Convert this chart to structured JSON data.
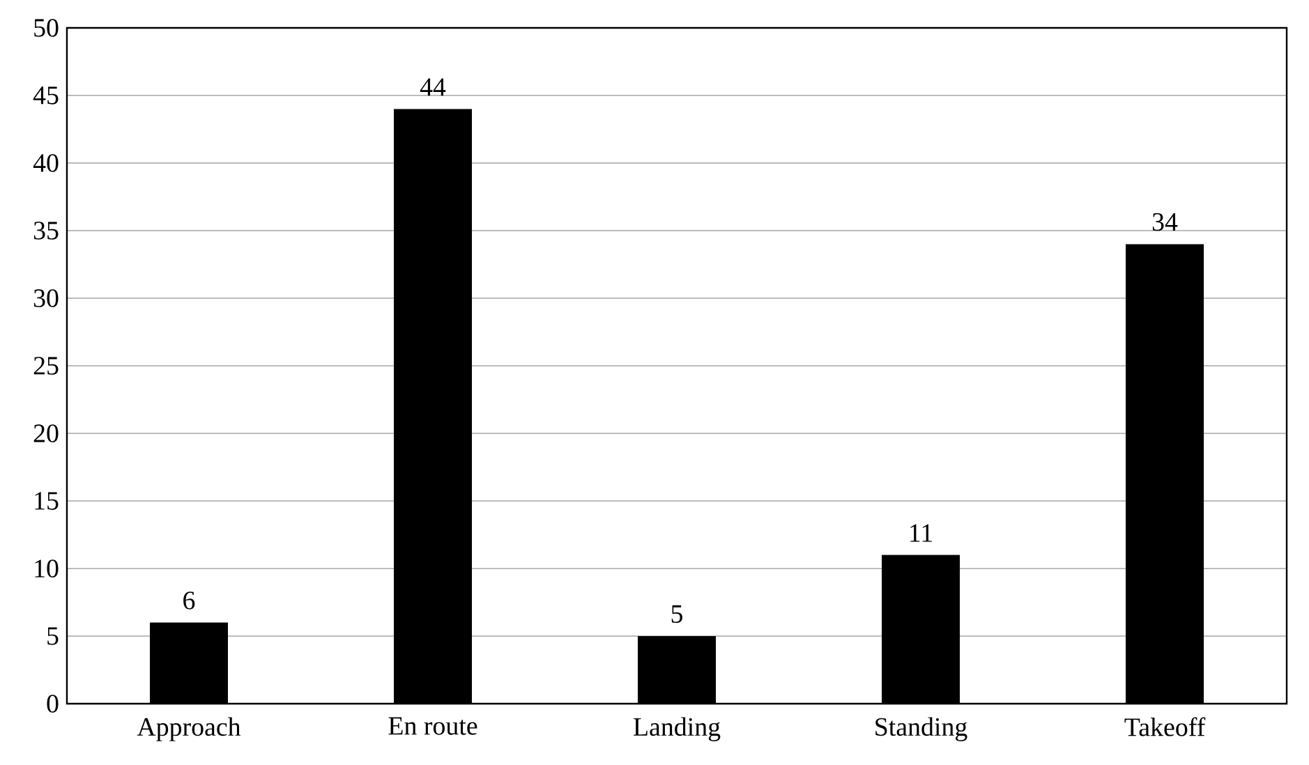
{
  "chart_data": {
    "type": "bar",
    "categories": [
      "Approach",
      "En route",
      "Landing",
      "Standing",
      "Takeoff"
    ],
    "values": [
      6,
      44,
      5,
      11,
      34
    ],
    "color": "#000000",
    "ylim": [
      0,
      50
    ],
    "yticks": [
      0,
      5,
      10,
      15,
      20,
      25,
      30,
      35,
      40,
      45,
      50
    ],
    "grid": "y",
    "data_labels": true
  }
}
